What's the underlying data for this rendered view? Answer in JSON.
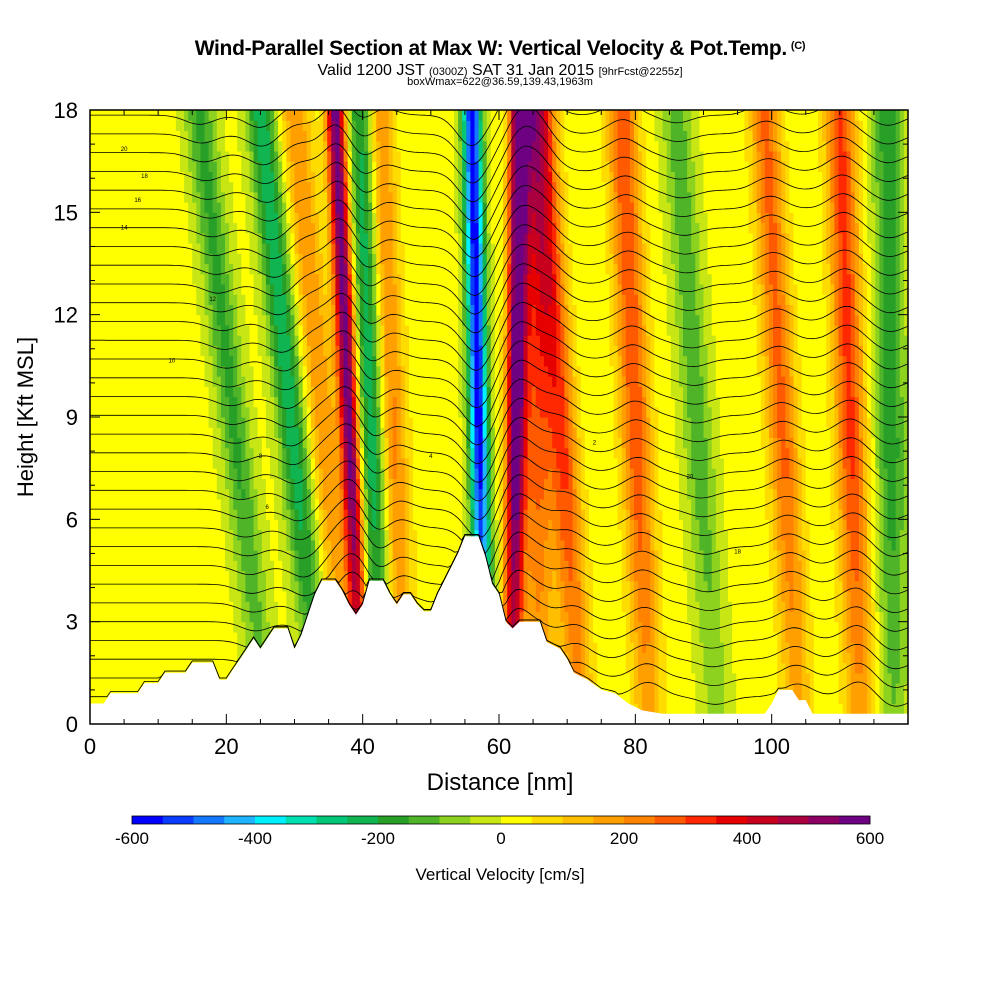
{
  "title": {
    "main": "Wind-Parallel Section at Max W: Vertical Velocity & Pot.Temp.",
    "copyright": "(C)",
    "valid_prefix": "Valid 1200 JST",
    "valid_utc": "(0300Z)",
    "valid_date": "SAT 31 Jan 2015",
    "forecast": "[9hrFcst@2255z]",
    "boxinfo": "boxWmax=622@36.59,139.43,1963m"
  },
  "chart_data": {
    "type": "heatmap",
    "xlabel": "Distance [nm]",
    "ylabel": "Height [Kft MSL]",
    "xlim": [
      0,
      120
    ],
    "ylim": [
      0,
      18
    ],
    "x_ticks": [
      0,
      20,
      40,
      60,
      80,
      100
    ],
    "y_ticks": [
      0,
      3,
      6,
      9,
      12,
      15,
      18
    ],
    "colorbar": {
      "label": "Vertical Velocity [cm/s]",
      "range": [
        -600,
        600
      ],
      "tick_values": [
        -600,
        -400,
        -200,
        0,
        200,
        400,
        600
      ],
      "tick_labels": [
        "-600",
        "-400",
        "-200",
        "0",
        "200",
        "400",
        "600"
      ],
      "colors": [
        "#0000ff",
        "#0a3cff",
        "#1478ff",
        "#1eb4ff",
        "#00f0ff",
        "#00e0b0",
        "#00c878",
        "#10b450",
        "#28a028",
        "#50b428",
        "#8cd21e",
        "#c8e614",
        "#ffff00",
        "#ffdc00",
        "#ffbe00",
        "#ffa000",
        "#ff8200",
        "#ff5a00",
        "#ff2800",
        "#e60000",
        "#c8001e",
        "#aa0040",
        "#8c0064",
        "#6e0082"
      ]
    },
    "terrain_kft": [
      [
        0,
        0.6
      ],
      [
        2,
        0.6
      ],
      [
        3,
        0.9
      ],
      [
        7,
        0.9
      ],
      [
        8,
        1.2
      ],
      [
        10,
        1.2
      ],
      [
        11,
        1.5
      ],
      [
        14,
        1.5
      ],
      [
        15,
        1.8
      ],
      [
        18,
        1.8
      ],
      [
        19,
        1.3
      ],
      [
        20,
        1.3
      ],
      [
        21,
        1.6
      ],
      [
        22,
        1.9
      ],
      [
        23,
        2.2
      ],
      [
        24,
        2.5
      ],
      [
        25,
        2.2
      ],
      [
        26,
        2.5
      ],
      [
        27,
        2.8
      ],
      [
        29,
        2.8
      ],
      [
        30,
        2.2
      ],
      [
        31,
        2.6
      ],
      [
        32,
        3.2
      ],
      [
        33,
        3.8
      ],
      [
        34,
        4.2
      ],
      [
        36,
        4.2
      ],
      [
        37,
        3.9
      ],
      [
        38,
        3.5
      ],
      [
        39,
        3.2
      ],
      [
        40,
        3.5
      ],
      [
        41,
        4.2
      ],
      [
        43,
        4.2
      ],
      [
        44,
        3.8
      ],
      [
        45,
        3.5
      ],
      [
        46,
        3.8
      ],
      [
        47,
        3.8
      ],
      [
        48,
        3.5
      ],
      [
        49,
        3.3
      ],
      [
        50,
        3.3
      ],
      [
        51,
        3.8
      ],
      [
        52,
        4.2
      ],
      [
        53,
        4.6
      ],
      [
        54,
        5.0
      ],
      [
        55,
        5.5
      ],
      [
        57,
        5.5
      ],
      [
        58,
        4.9
      ],
      [
        59,
        4.1
      ],
      [
        60,
        3.8
      ],
      [
        61,
        3.0
      ],
      [
        62,
        2.8
      ],
      [
        63,
        3.0
      ],
      [
        66,
        3.0
      ],
      [
        67,
        2.4
      ],
      [
        69,
        2.2
      ],
      [
        70,
        1.9
      ],
      [
        71,
        1.5
      ],
      [
        73,
        1.3
      ],
      [
        75,
        1.0
      ],
      [
        77,
        0.9
      ],
      [
        79,
        0.6
      ],
      [
        81,
        0.4
      ],
      [
        84,
        0.3
      ],
      [
        99,
        0.3
      ],
      [
        100,
        0.6
      ],
      [
        101,
        1.0
      ],
      [
        103,
        1.0
      ],
      [
        104,
        0.7
      ],
      [
        105,
        0.7
      ],
      [
        106,
        0.3
      ],
      [
        120,
        0.3
      ]
    ],
    "w_bands": [
      {
        "x_bottom": 26,
        "x_top": 16,
        "w": -180
      },
      {
        "x_bottom": 34,
        "x_top": 25,
        "w": -250
      },
      {
        "x_bottom": 38,
        "x_top": 30,
        "w": 180
      },
      {
        "x_bottom": 40,
        "x_top": 36,
        "w": 580
      },
      {
        "x_bottom": 43,
        "x_top": 40,
        "w": -300
      },
      {
        "x_bottom": 46,
        "x_top": 42,
        "w": 250
      },
      {
        "x_bottom": 58,
        "x_top": 56,
        "w": -600
      },
      {
        "x_bottom": 62,
        "x_top": 63,
        "w": 600
      },
      {
        "x_bottom": 66,
        "x_top": 65,
        "w": 250
      },
      {
        "x_bottom": 72,
        "x_top": 66,
        "w": 300
      },
      {
        "x_bottom": 82,
        "x_top": 78,
        "w": 280
      },
      {
        "x_bottom": 92,
        "x_top": 86,
        "w": -150
      },
      {
        "x_bottom": 104,
        "x_top": 99,
        "w": 250
      },
      {
        "x_bottom": 113,
        "x_top": 110,
        "w": 300
      },
      {
        "x_bottom": 118,
        "x_top": 117,
        "w": -200
      }
    ],
    "theta_labels": [
      "20",
      "18",
      "16",
      "14",
      "12",
      "10",
      "8",
      "6",
      "4",
      "2"
    ]
  }
}
